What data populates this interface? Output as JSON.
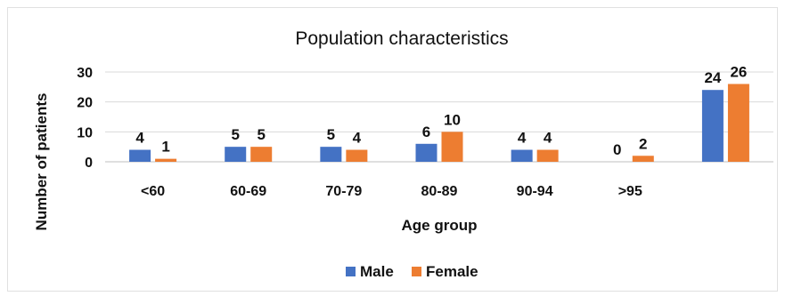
{
  "chart_data": {
    "type": "bar",
    "title": "Population characteristics",
    "xlabel": "Age group",
    "ylabel": "Number of patients",
    "categories": [
      "<60",
      "60-69",
      "70-79",
      "80-89",
      "90-94",
      ">95",
      ""
    ],
    "series": [
      {
        "name": "Male",
        "color": "#4472C4",
        "values": [
          4,
          5,
          5,
          6,
          4,
          0,
          24
        ]
      },
      {
        "name": "Female",
        "color": "#ED7D31",
        "values": [
          1,
          5,
          4,
          10,
          4,
          2,
          26
        ]
      }
    ],
    "ylim": [
      0,
      30
    ],
    "yticks": [
      0,
      10,
      20,
      30
    ],
    "grid": true,
    "legend_position": "bottom"
  }
}
